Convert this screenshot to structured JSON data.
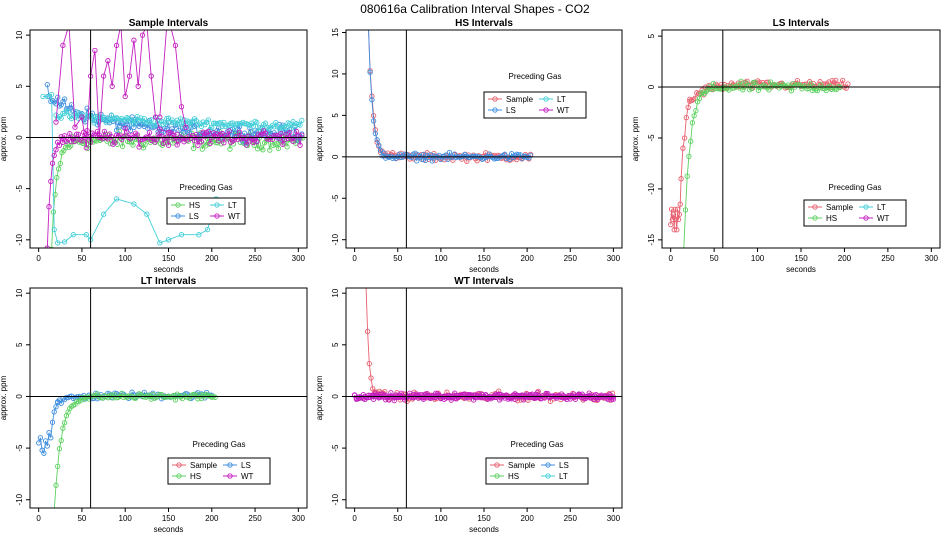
{
  "suptitle": "080616a   Calibration Interval Shapes - CO2",
  "colors": {
    "Sample": "#e8606f",
    "HS": "#5cd160",
    "LS": "#3f8fe0",
    "LT": "#45cfd8",
    "WT": "#c41fc0"
  },
  "chart_data": [
    {
      "type": "scatter",
      "title": "Sample Intervals",
      "xlabel": "seconds",
      "ylabel": "approx. ppm",
      "xlim": [
        -10,
        310
      ],
      "ylim": [
        -10.8,
        10.5
      ],
      "xticks": [
        0,
        50,
        100,
        150,
        200,
        250,
        300
      ],
      "yticks": [
        -10,
        -5,
        0,
        5,
        10
      ],
      "vline": 60,
      "hline": 0,
      "legend": {
        "title": "Preceding Gas",
        "position": "bottom-center",
        "entries": [
          "HS",
          "LT",
          "LS",
          "WT"
        ]
      },
      "series": [
        {
          "name": "HS",
          "shape": "exp",
          "x_range": [
            15,
            305
          ],
          "start": -11,
          "tau": 6,
          "level": -0.3,
          "noise": 0.9
        },
        {
          "name": "LS",
          "shape": "exp",
          "x_range": [
            10,
            305
          ],
          "start": 4.2,
          "tau": 60,
          "level": 0.4,
          "noise": 0.8
        },
        {
          "name": "LT",
          "shape": "path",
          "points": [
            [
              5,
              4
            ],
            [
              10,
              4
            ],
            [
              15,
              4.2
            ],
            [
              18,
              -9
            ],
            [
              22,
              -10.3
            ],
            [
              30,
              -10.2
            ],
            [
              40,
              -9.5
            ],
            [
              55,
              -9.5
            ],
            [
              60,
              -10
            ],
            [
              75,
              -7.5
            ],
            [
              90,
              -6
            ],
            [
              110,
              -6.5
            ],
            [
              125,
              -7.5
            ],
            [
              140,
              -10.3
            ],
            [
              150,
              -10
            ],
            [
              165,
              -9.5
            ],
            [
              185,
              -9.5
            ],
            [
              195,
              -9
            ],
            [
              205,
              -6
            ],
            [
              210,
              -7
            ]
          ]
        },
        {
          "name": "LT",
          "shape": "exp",
          "x_range": [
            20,
            305
          ],
          "start": 2.2,
          "tau": 200,
          "level": 0.8,
          "noise": 0.5
        },
        {
          "name": "WT",
          "shape": "exp",
          "x_range": [
            10,
            305
          ],
          "start": -11,
          "tau": 4,
          "level": 0.0,
          "noise": 0.8
        },
        {
          "name": "WT",
          "shape": "path",
          "points": [
            [
              20,
              1.5
            ],
            [
              28,
              9
            ],
            [
              35,
              11
            ],
            [
              42,
              1
            ],
            [
              50,
              2
            ],
            [
              55,
              -1
            ],
            [
              60,
              6
            ],
            [
              65,
              8.5
            ],
            [
              70,
              0
            ],
            [
              75,
              6
            ],
            [
              80,
              7.5
            ],
            [
              85,
              5
            ],
            [
              90,
              9
            ],
            [
              95,
              11
            ],
            [
              100,
              4
            ],
            [
              105,
              6
            ],
            [
              110,
              9.5
            ],
            [
              115,
              5
            ],
            [
              120,
              10
            ],
            [
              125,
              11
            ],
            [
              130,
              6
            ],
            [
              135,
              2
            ],
            [
              140,
              0.8
            ],
            [
              150,
              0.5
            ],
            [
              160,
              0.3
            ]
          ]
        },
        {
          "name": "WT",
          "shape": "path",
          "points": [
            [
              140,
              2
            ],
            [
              148,
              11
            ],
            [
              152,
              11
            ],
            [
              158,
              9
            ],
            [
              165,
              3
            ],
            [
              170,
              1
            ]
          ]
        }
      ]
    },
    {
      "type": "scatter",
      "title": "HS Intervals",
      "xlabel": "seconds",
      "ylabel": "approx. ppm",
      "xlim": [
        -10,
        310
      ],
      "ylim": [
        -11,
        15.3
      ],
      "xticks": [
        0,
        50,
        100,
        150,
        200,
        250,
        300
      ],
      "yticks": [
        -10,
        -5,
        0,
        5,
        10,
        15
      ],
      "vline": 60,
      "hline": 0,
      "legend": {
        "title": "Preceding Gas",
        "position": "top-center",
        "entries": [
          "Sample",
          "LT",
          "LS",
          "WT"
        ]
      },
      "series": [
        {
          "name": "Sample",
          "shape": "exp",
          "x_range": [
            16,
            205
          ],
          "start": 16,
          "tau": 5,
          "level": 0,
          "noise": 0.5
        },
        {
          "name": "LS",
          "shape": "exp",
          "x_range": [
            16,
            205
          ],
          "start": 16,
          "tau": 4.5,
          "level": 0,
          "noise": 0.45
        }
      ]
    },
    {
      "type": "scatter",
      "title": "LS Intervals",
      "xlabel": "seconds",
      "ylabel": "approx. ppm",
      "xlim": [
        -10,
        310
      ],
      "ylim": [
        -15.8,
        5.6
      ],
      "xticks": [
        0,
        50,
        100,
        150,
        200,
        250,
        300
      ],
      "yticks": [
        -15,
        -10,
        -5,
        0,
        5
      ],
      "vline": 60,
      "hline": 0,
      "legend": {
        "title": "Preceding Gas",
        "position": "bottom-center",
        "entries": [
          "Sample",
          "LT",
          "HS",
          "WT"
        ]
      },
      "series": [
        {
          "name": "Sample",
          "shape": "path",
          "points": [
            [
              0,
              -13.5
            ],
            [
              1,
              -12
            ],
            [
              2,
              -13
            ],
            [
              3,
              -12.5
            ],
            [
              4,
              -14
            ],
            [
              5,
              -12
            ],
            [
              6,
              -13
            ],
            [
              7,
              -14
            ],
            [
              8,
              -12
            ],
            [
              9,
              -13
            ],
            [
              10,
              -12.5
            ],
            [
              11,
              -11.5
            ],
            [
              12,
              -9
            ],
            [
              14,
              -6
            ],
            [
              16,
              -5
            ],
            [
              18,
              -3
            ],
            [
              20,
              -2
            ],
            [
              22,
              -1.2
            ]
          ]
        },
        {
          "name": "Sample",
          "shape": "exp",
          "x_range": [
            22,
            205
          ],
          "start": -1.5,
          "tau": 15,
          "level": 0.2,
          "noise": 0.45
        },
        {
          "name": "HS",
          "shape": "exp",
          "x_range": [
            15,
            195
          ],
          "start": -16,
          "tau": 7,
          "level": 0,
          "noise": 0.5
        }
      ]
    },
    {
      "type": "scatter",
      "title": "LT Intervals",
      "xlabel": "seconds",
      "ylabel": "approx. ppm",
      "xlim": [
        -10,
        310
      ],
      "ylim": [
        -10.8,
        10.5
      ],
      "xticks": [
        0,
        50,
        100,
        150,
        200,
        250,
        300
      ],
      "yticks": [
        -10,
        -5,
        0,
        5,
        10
      ],
      "vline": 60,
      "hline": 0,
      "legend": {
        "title": "Preceding Gas",
        "position": "bottom-center",
        "entries": [
          "Sample",
          "LS",
          "HS",
          "WT"
        ]
      },
      "series": [
        {
          "name": "LS",
          "shape": "path",
          "points": [
            [
              0,
              -4.5
            ],
            [
              2,
              -4
            ],
            [
              4,
              -5.2
            ],
            [
              6,
              -5.5
            ],
            [
              8,
              -4.3
            ],
            [
              10,
              -4.8
            ],
            [
              12,
              -3.5
            ],
            [
              14,
              -4
            ],
            [
              16,
              -2.5
            ],
            [
              18,
              -1.5
            ],
            [
              20,
              -1
            ],
            [
              22,
              -0.6
            ]
          ]
        },
        {
          "name": "LS",
          "shape": "exp",
          "x_range": [
            22,
            200
          ],
          "start": -0.5,
          "tau": 20,
          "level": 0.1,
          "noise": 0.35
        },
        {
          "name": "HS",
          "shape": "exp",
          "x_range": [
            18,
            205
          ],
          "start": -11,
          "tau": 8,
          "level": 0,
          "noise": 0.3
        }
      ]
    },
    {
      "type": "scatter",
      "title": "WT Intervals",
      "xlabel": "seconds",
      "ylabel": "approx. ppm",
      "xlim": [
        -10,
        310
      ],
      "ylim": [
        -10.8,
        10.5
      ],
      "xticks": [
        0,
        50,
        100,
        150,
        200,
        250,
        300
      ],
      "yticks": [
        -10,
        -5,
        0,
        5,
        10
      ],
      "vline": 60,
      "hline": 0,
      "legend": {
        "title": "Preceding Gas",
        "position": "bottom-center",
        "entries": [
          "Sample",
          "LS",
          "HS",
          "LT"
        ]
      },
      "series": [
        {
          "name": "Sample",
          "shape": "exp",
          "x_range": [
            13,
            300
          ],
          "start": 11,
          "tau": 3.5,
          "level": 0,
          "noise": 0.45
        },
        {
          "name": "WT",
          "shape": "exp",
          "x_range": [
            0,
            300
          ],
          "start": 0,
          "tau": 5,
          "level": 0,
          "noise": 0.35
        },
        {
          "name": "WT",
          "shape": "exp",
          "x_range": [
            0,
            300
          ],
          "start": 0,
          "tau": 5,
          "level": 0,
          "noise": 0.3
        }
      ]
    }
  ]
}
